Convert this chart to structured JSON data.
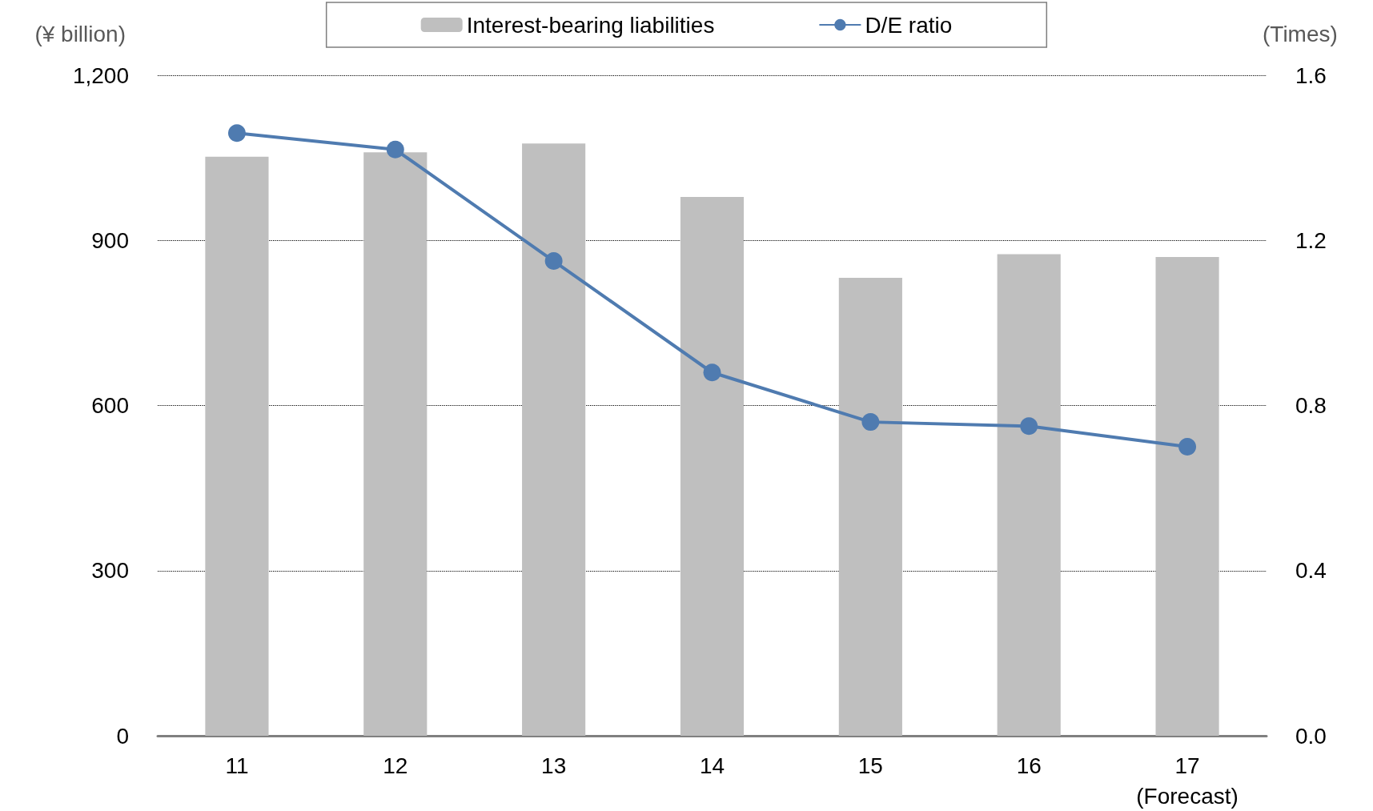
{
  "chart_data": {
    "type": "bar",
    "categories": [
      "11",
      "12",
      "13",
      "14",
      "15",
      "16",
      "17\n(Forecast)"
    ],
    "series": [
      {
        "name": "Interest-bearing liabilities",
        "color": "#bfbfbf",
        "values": [
          1052,
          1060,
          1076,
          979,
          832,
          875,
          870
        ]
      },
      {
        "name": "D/E ratio",
        "type": "line",
        "axis": "y2",
        "color": "#4f7bb0",
        "values": [
          1.46,
          1.42,
          1.15,
          0.88,
          0.76,
          0.75,
          0.7
        ]
      }
    ],
    "ylabel": "(¥ billion)",
    "y2label": "(Times)",
    "ylim": [
      0,
      1200
    ],
    "yticks": [
      0,
      {
        "value": 300,
        "label": "300"
      },
      {
        "value": 600,
        "label": "600"
      },
      {
        "value": 900,
        "label": "900"
      },
      {
        "value": 1200,
        "label": "1,200"
      }
    ],
    "y2lim": [
      0,
      1.6
    ],
    "y2ticks": [
      {
        "value": 0,
        "label": "0.0"
      },
      {
        "value": 0.4,
        "label": "0.4"
      },
      {
        "value": 0.8,
        "label": "0.8"
      },
      {
        "value": 1.2,
        "label": "1.2"
      },
      {
        "value": 1.6,
        "label": "1.6"
      }
    ],
    "grid": "y",
    "legend": "top",
    "marker": "circle",
    "line_style": "solid"
  }
}
